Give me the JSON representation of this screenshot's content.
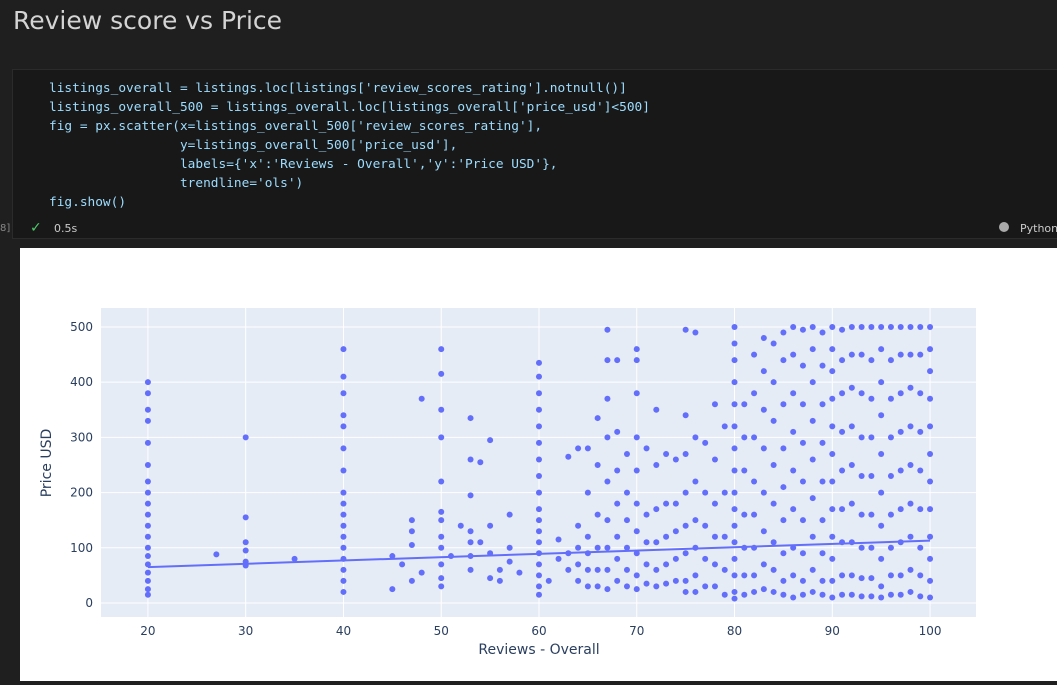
{
  "header": {
    "title": "Review score vs Price"
  },
  "cell": {
    "execution_count": "8]",
    "code": [
      "listings_overall = listings.loc[listings['review_scores_rating'].notnull()]",
      "listings_overall_500 = listings_overall.loc[listings_overall['price_usd']<500]",
      "fig = px.scatter(x=listings_overall_500['review_scores_rating'],",
      "                 y=listings_overall_500['price_usd'],",
      "                 labels={'x':'Reviews - Overall','y':'Price USD'},",
      "                 trendline='ols')",
      "fig.show()"
    ],
    "duration": "0.5s",
    "language": "Python"
  },
  "chart_data": {
    "type": "scatter",
    "xlabel": "Reviews - Overall",
    "ylabel": "Price USD",
    "color": "#636efa",
    "grid": true,
    "xlim": [
      15.2,
      104.7
    ],
    "ylim": [
      -25.4,
      534.4
    ],
    "xticks": [
      20,
      30,
      40,
      50,
      60,
      70,
      80,
      90,
      100
    ],
    "yticks": [
      0,
      100,
      200,
      300,
      400,
      500
    ],
    "trendline": {
      "x": [
        20,
        100
      ],
      "values": [
        65,
        113
      ]
    },
    "points": [
      [
        20,
        15
      ],
      [
        20,
        25
      ],
      [
        20,
        40
      ],
      [
        20,
        55
      ],
      [
        20,
        70
      ],
      [
        20,
        85
      ],
      [
        20,
        100
      ],
      [
        20,
        120
      ],
      [
        20,
        140
      ],
      [
        20,
        160
      ],
      [
        20,
        180
      ],
      [
        20,
        200
      ],
      [
        20,
        220
      ],
      [
        20,
        250
      ],
      [
        20,
        290
      ],
      [
        20,
        330
      ],
      [
        20,
        350
      ],
      [
        20,
        380
      ],
      [
        20,
        400
      ],
      [
        27,
        88
      ],
      [
        30,
        300
      ],
      [
        30,
        155
      ],
      [
        30,
        110
      ],
      [
        30,
        95
      ],
      [
        30,
        75
      ],
      [
        30,
        68
      ],
      [
        35,
        80
      ],
      [
        40,
        20
      ],
      [
        40,
        40
      ],
      [
        40,
        60
      ],
      [
        40,
        80
      ],
      [
        40,
        100
      ],
      [
        40,
        120
      ],
      [
        40,
        140
      ],
      [
        40,
        160
      ],
      [
        40,
        180
      ],
      [
        40,
        200
      ],
      [
        40,
        240
      ],
      [
        40,
        280
      ],
      [
        40,
        320
      ],
      [
        40,
        340
      ],
      [
        40,
        380
      ],
      [
        40,
        410
      ],
      [
        40,
        460
      ],
      [
        45,
        85
      ],
      [
        45,
        25
      ],
      [
        46,
        70
      ],
      [
        47,
        150
      ],
      [
        47,
        130
      ],
      [
        47,
        105
      ],
      [
        47,
        40
      ],
      [
        48,
        370
      ],
      [
        48,
        55
      ],
      [
        50,
        460
      ],
      [
        50,
        415
      ],
      [
        50,
        350
      ],
      [
        50,
        300
      ],
      [
        50,
        220
      ],
      [
        50,
        165
      ],
      [
        50,
        150
      ],
      [
        50,
        120
      ],
      [
        50,
        100
      ],
      [
        50,
        70
      ],
      [
        50,
        45
      ],
      [
        50,
        30
      ],
      [
        51,
        85
      ],
      [
        52,
        140
      ],
      [
        53,
        335
      ],
      [
        53,
        260
      ],
      [
        53,
        195
      ],
      [
        53,
        130
      ],
      [
        53,
        110
      ],
      [
        53,
        85
      ],
      [
        53,
        60
      ],
      [
        54,
        255
      ],
      [
        54,
        110
      ],
      [
        55,
        295
      ],
      [
        55,
        140
      ],
      [
        55,
        90
      ],
      [
        55,
        45
      ],
      [
        56,
        60
      ],
      [
        56,
        40
      ],
      [
        57,
        160
      ],
      [
        57,
        100
      ],
      [
        57,
        75
      ],
      [
        58,
        55
      ],
      [
        60,
        15
      ],
      [
        60,
        30
      ],
      [
        60,
        50
      ],
      [
        60,
        70
      ],
      [
        60,
        90
      ],
      [
        60,
        110
      ],
      [
        60,
        130
      ],
      [
        60,
        150
      ],
      [
        60,
        170
      ],
      [
        60,
        200
      ],
      [
        60,
        230
      ],
      [
        60,
        260
      ],
      [
        60,
        290
      ],
      [
        60,
        320
      ],
      [
        60,
        350
      ],
      [
        60,
        380
      ],
      [
        60,
        410
      ],
      [
        60,
        435
      ],
      [
        61,
        40
      ],
      [
        62,
        115
      ],
      [
        62,
        80
      ],
      [
        63,
        265
      ],
      [
        63,
        90
      ],
      [
        63,
        60
      ],
      [
        64,
        280
      ],
      [
        64,
        140
      ],
      [
        64,
        100
      ],
      [
        64,
        70
      ],
      [
        64,
        40
      ],
      [
        65,
        280
      ],
      [
        65,
        200
      ],
      [
        65,
        120
      ],
      [
        65,
        90
      ],
      [
        65,
        60
      ],
      [
        65,
        30
      ],
      [
        66,
        335
      ],
      [
        66,
        250
      ],
      [
        66,
        160
      ],
      [
        66,
        100
      ],
      [
        66,
        60
      ],
      [
        66,
        30
      ],
      [
        67,
        495
      ],
      [
        67,
        440
      ],
      [
        67,
        370
      ],
      [
        67,
        300
      ],
      [
        67,
        220
      ],
      [
        67,
        150
      ],
      [
        67,
        100
      ],
      [
        67,
        60
      ],
      [
        67,
        25
      ],
      [
        68,
        440
      ],
      [
        68,
        310
      ],
      [
        68,
        240
      ],
      [
        68,
        180
      ],
      [
        68,
        120
      ],
      [
        68,
        80
      ],
      [
        68,
        40
      ],
      [
        69,
        270
      ],
      [
        69,
        200
      ],
      [
        69,
        150
      ],
      [
        69,
        100
      ],
      [
        69,
        60
      ],
      [
        69,
        30
      ],
      [
        70,
        460
      ],
      [
        70,
        440
      ],
      [
        70,
        380
      ],
      [
        70,
        300
      ],
      [
        70,
        240
      ],
      [
        70,
        180
      ],
      [
        70,
        130
      ],
      [
        70,
        90
      ],
      [
        70,
        50
      ],
      [
        70,
        25
      ],
      [
        71,
        280
      ],
      [
        71,
        160
      ],
      [
        71,
        110
      ],
      [
        71,
        70
      ],
      [
        71,
        35
      ],
      [
        72,
        350
      ],
      [
        72,
        250
      ],
      [
        72,
        170
      ],
      [
        72,
        110
      ],
      [
        72,
        60
      ],
      [
        72,
        30
      ],
      [
        73,
        270
      ],
      [
        73,
        180
      ],
      [
        73,
        120
      ],
      [
        73,
        70
      ],
      [
        73,
        35
      ],
      [
        74,
        260
      ],
      [
        74,
        180
      ],
      [
        74,
        130
      ],
      [
        74,
        80
      ],
      [
        74,
        40
      ],
      [
        75,
        495
      ],
      [
        75,
        340
      ],
      [
        75,
        270
      ],
      [
        75,
        200
      ],
      [
        75,
        140
      ],
      [
        75,
        90
      ],
      [
        75,
        40
      ],
      [
        75,
        20
      ],
      [
        76,
        490
      ],
      [
        76,
        300
      ],
      [
        76,
        220
      ],
      [
        76,
        150
      ],
      [
        76,
        100
      ],
      [
        76,
        50
      ],
      [
        76,
        20
      ],
      [
        77,
        290
      ],
      [
        77,
        200
      ],
      [
        77,
        140
      ],
      [
        77,
        80
      ],
      [
        77,
        30
      ],
      [
        78,
        360
      ],
      [
        78,
        260
      ],
      [
        78,
        180
      ],
      [
        78,
        120
      ],
      [
        78,
        70
      ],
      [
        78,
        30
      ],
      [
        79,
        320
      ],
      [
        79,
        200
      ],
      [
        79,
        120
      ],
      [
        79,
        60
      ],
      [
        79,
        15
      ],
      [
        80,
        500
      ],
      [
        80,
        470
      ],
      [
        80,
        440
      ],
      [
        80,
        400
      ],
      [
        80,
        360
      ],
      [
        80,
        320
      ],
      [
        80,
        280
      ],
      [
        80,
        240
      ],
      [
        80,
        200
      ],
      [
        80,
        170
      ],
      [
        80,
        140
      ],
      [
        80,
        110
      ],
      [
        80,
        80
      ],
      [
        80,
        50
      ],
      [
        80,
        20
      ],
      [
        80,
        8
      ],
      [
        81,
        360
      ],
      [
        81,
        300
      ],
      [
        81,
        240
      ],
      [
        81,
        160
      ],
      [
        81,
        100
      ],
      [
        81,
        50
      ],
      [
        81,
        15
      ],
      [
        82,
        450
      ],
      [
        82,
        380
      ],
      [
        82,
        300
      ],
      [
        82,
        220
      ],
      [
        82,
        160
      ],
      [
        82,
        100
      ],
      [
        82,
        50
      ],
      [
        82,
        20
      ],
      [
        83,
        480
      ],
      [
        83,
        420
      ],
      [
        83,
        350
      ],
      [
        83,
        280
      ],
      [
        83,
        200
      ],
      [
        83,
        130
      ],
      [
        83,
        70
      ],
      [
        83,
        25
      ],
      [
        84,
        470
      ],
      [
        84,
        400
      ],
      [
        84,
        330
      ],
      [
        84,
        250
      ],
      [
        84,
        180
      ],
      [
        84,
        110
      ],
      [
        84,
        60
      ],
      [
        84,
        20
      ],
      [
        85,
        490
      ],
      [
        85,
        440
      ],
      [
        85,
        360
      ],
      [
        85,
        280
      ],
      [
        85,
        210
      ],
      [
        85,
        150
      ],
      [
        85,
        90
      ],
      [
        85,
        40
      ],
      [
        85,
        15
      ],
      [
        86,
        500
      ],
      [
        86,
        450
      ],
      [
        86,
        380
      ],
      [
        86,
        310
      ],
      [
        86,
        240
      ],
      [
        86,
        170
      ],
      [
        86,
        100
      ],
      [
        86,
        50
      ],
      [
        86,
        10
      ],
      [
        87,
        495
      ],
      [
        87,
        430
      ],
      [
        87,
        360
      ],
      [
        87,
        290
      ],
      [
        87,
        220
      ],
      [
        87,
        150
      ],
      [
        87,
        90
      ],
      [
        87,
        40
      ],
      [
        87,
        15
      ],
      [
        88,
        500
      ],
      [
        88,
        460
      ],
      [
        88,
        400
      ],
      [
        88,
        330
      ],
      [
        88,
        260
      ],
      [
        88,
        190
      ],
      [
        88,
        120
      ],
      [
        88,
        60
      ],
      [
        88,
        20
      ],
      [
        89,
        490
      ],
      [
        89,
        430
      ],
      [
        89,
        360
      ],
      [
        89,
        290
      ],
      [
        89,
        220
      ],
      [
        89,
        150
      ],
      [
        89,
        90
      ],
      [
        89,
        40
      ],
      [
        89,
        15
      ],
      [
        90,
        500
      ],
      [
        90,
        460
      ],
      [
        90,
        420
      ],
      [
        90,
        370
      ],
      [
        90,
        320
      ],
      [
        90,
        270
      ],
      [
        90,
        220
      ],
      [
        90,
        170
      ],
      [
        90,
        120
      ],
      [
        90,
        80
      ],
      [
        90,
        40
      ],
      [
        90,
        10
      ],
      [
        91,
        495
      ],
      [
        91,
        440
      ],
      [
        91,
        380
      ],
      [
        91,
        310
      ],
      [
        91,
        240
      ],
      [
        91,
        170
      ],
      [
        91,
        110
      ],
      [
        91,
        50
      ],
      [
        91,
        15
      ],
      [
        92,
        500
      ],
      [
        92,
        450
      ],
      [
        92,
        390
      ],
      [
        92,
        320
      ],
      [
        92,
        250
      ],
      [
        92,
        180
      ],
      [
        92,
        110
      ],
      [
        92,
        50
      ],
      [
        92,
        15
      ],
      [
        93,
        500
      ],
      [
        93,
        450
      ],
      [
        93,
        380
      ],
      [
        93,
        300
      ],
      [
        93,
        230
      ],
      [
        93,
        160
      ],
      [
        93,
        100
      ],
      [
        93,
        45
      ],
      [
        93,
        12
      ],
      [
        94,
        500
      ],
      [
        94,
        440
      ],
      [
        94,
        370
      ],
      [
        94,
        300
      ],
      [
        94,
        230
      ],
      [
        94,
        160
      ],
      [
        94,
        100
      ],
      [
        94,
        45
      ],
      [
        94,
        12
      ],
      [
        95,
        500
      ],
      [
        95,
        460
      ],
      [
        95,
        400
      ],
      [
        95,
        340
      ],
      [
        95,
        270
      ],
      [
        95,
        200
      ],
      [
        95,
        140
      ],
      [
        95,
        80
      ],
      [
        95,
        30
      ],
      [
        95,
        10
      ],
      [
        96,
        500
      ],
      [
        96,
        440
      ],
      [
        96,
        370
      ],
      [
        96,
        300
      ],
      [
        96,
        230
      ],
      [
        96,
        160
      ],
      [
        96,
        100
      ],
      [
        96,
        50
      ],
      [
        96,
        15
      ],
      [
        97,
        500
      ],
      [
        97,
        450
      ],
      [
        97,
        380
      ],
      [
        97,
        310
      ],
      [
        97,
        240
      ],
      [
        97,
        170
      ],
      [
        97,
        110
      ],
      [
        97,
        50
      ],
      [
        97,
        15
      ],
      [
        98,
        500
      ],
      [
        98,
        450
      ],
      [
        98,
        390
      ],
      [
        98,
        320
      ],
      [
        98,
        250
      ],
      [
        98,
        180
      ],
      [
        98,
        120
      ],
      [
        98,
        60
      ],
      [
        98,
        20
      ],
      [
        99,
        500
      ],
      [
        99,
        450
      ],
      [
        99,
        380
      ],
      [
        99,
        310
      ],
      [
        99,
        240
      ],
      [
        99,
        170
      ],
      [
        99,
        100
      ],
      [
        99,
        50
      ],
      [
        99,
        12
      ],
      [
        100,
        500
      ],
      [
        100,
        460
      ],
      [
        100,
        420
      ],
      [
        100,
        370
      ],
      [
        100,
        320
      ],
      [
        100,
        270
      ],
      [
        100,
        220
      ],
      [
        100,
        170
      ],
      [
        100,
        120
      ],
      [
        100,
        80
      ],
      [
        100,
        40
      ],
      [
        100,
        10
      ]
    ]
  }
}
